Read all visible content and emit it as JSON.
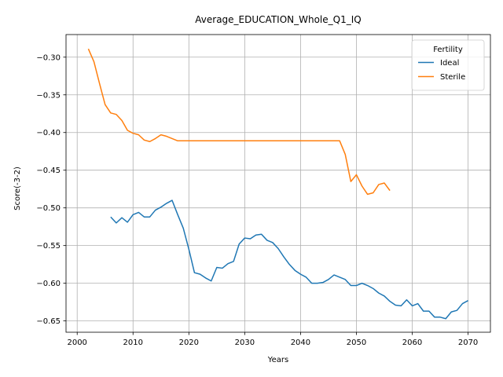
{
  "chart_data": {
    "type": "line",
    "title": "Average_EDUCATION_Whole_Q1_IQ",
    "xlabel": "Years",
    "ylabel": "Score(-3-2)",
    "xlim": [
      1998,
      2074
    ],
    "ylim": [
      -0.665,
      -0.27
    ],
    "xticks": [
      2000,
      2010,
      2020,
      2030,
      2040,
      2050,
      2060,
      2070
    ],
    "xtick_labels": [
      "2000",
      "2010",
      "2020",
      "2030",
      "2040",
      "2050",
      "2060",
      "2070"
    ],
    "yticks": [
      -0.3,
      -0.35,
      -0.4,
      -0.45,
      -0.5,
      -0.55,
      -0.6,
      -0.65
    ],
    "ytick_labels": [
      "−0.30",
      "−0.35",
      "−0.40",
      "−0.45",
      "−0.50",
      "−0.55",
      "−0.60",
      "−0.65"
    ],
    "grid": true,
    "legend": {
      "title": "Fertility",
      "placement": "top-right"
    },
    "series": [
      {
        "name": "Ideal",
        "color": "#1f77b4",
        "x": [
          2006,
          2007,
          2008,
          2009,
          2010,
          2011,
          2012,
          2013,
          2014,
          2015,
          2016,
          2017,
          2018,
          2019,
          2020,
          2021,
          2022,
          2023,
          2024,
          2025,
          2026,
          2027,
          2028,
          2029,
          2030,
          2031,
          2032,
          2033,
          2034,
          2035,
          2036,
          2037,
          2038,
          2039,
          2040,
          2041,
          2042,
          2043,
          2044,
          2045,
          2046,
          2047,
          2048,
          2049,
          2050,
          2051,
          2052,
          2053,
          2054,
          2055,
          2056,
          2057,
          2058,
          2059,
          2060,
          2061,
          2062,
          2063,
          2064,
          2065,
          2066,
          2067,
          2068,
          2069,
          2070
        ],
        "y": [
          -0.512,
          -0.52,
          -0.513,
          -0.519,
          -0.509,
          -0.506,
          -0.512,
          -0.512,
          -0.503,
          -0.499,
          -0.494,
          -0.49,
          -0.509,
          -0.527,
          -0.555,
          -0.586,
          -0.588,
          -0.593,
          -0.597,
          -0.579,
          -0.58,
          -0.574,
          -0.571,
          -0.548,
          -0.54,
          -0.541,
          -0.536,
          -0.535,
          -0.543,
          -0.546,
          -0.554,
          -0.565,
          -0.575,
          -0.583,
          -0.588,
          -0.592,
          -0.6,
          -0.6,
          -0.599,
          -0.595,
          -0.589,
          -0.592,
          -0.595,
          -0.603,
          -0.603,
          -0.6,
          -0.603,
          -0.607,
          -0.613,
          -0.617,
          -0.624,
          -0.629,
          -0.63,
          -0.622,
          -0.63,
          -0.627,
          -0.637,
          -0.637,
          -0.645,
          -0.645,
          -0.647,
          -0.638,
          -0.636,
          -0.627,
          -0.623
        ]
      },
      {
        "name": "Sterile",
        "color": "#ff7f0e",
        "x": [
          2002,
          2003,
          2004,
          2005,
          2006,
          2007,
          2008,
          2009,
          2010,
          2011,
          2012,
          2013,
          2014,
          2015,
          2016,
          2017,
          2018,
          2019,
          2020,
          2025,
          2030,
          2035,
          2040,
          2045,
          2047,
          2048,
          2049,
          2050,
          2051,
          2052,
          2053,
          2054,
          2055,
          2056
        ],
        "y": [
          -0.289,
          -0.306,
          -0.335,
          -0.363,
          -0.374,
          -0.376,
          -0.384,
          -0.397,
          -0.401,
          -0.403,
          -0.41,
          -0.412,
          -0.408,
          -0.403,
          -0.405,
          -0.408,
          -0.411,
          -0.411,
          -0.411,
          -0.411,
          -0.411,
          -0.411,
          -0.411,
          -0.411,
          -0.411,
          -0.429,
          -0.465,
          -0.456,
          -0.471,
          -0.482,
          -0.48,
          -0.469,
          -0.467,
          -0.477
        ]
      }
    ]
  }
}
